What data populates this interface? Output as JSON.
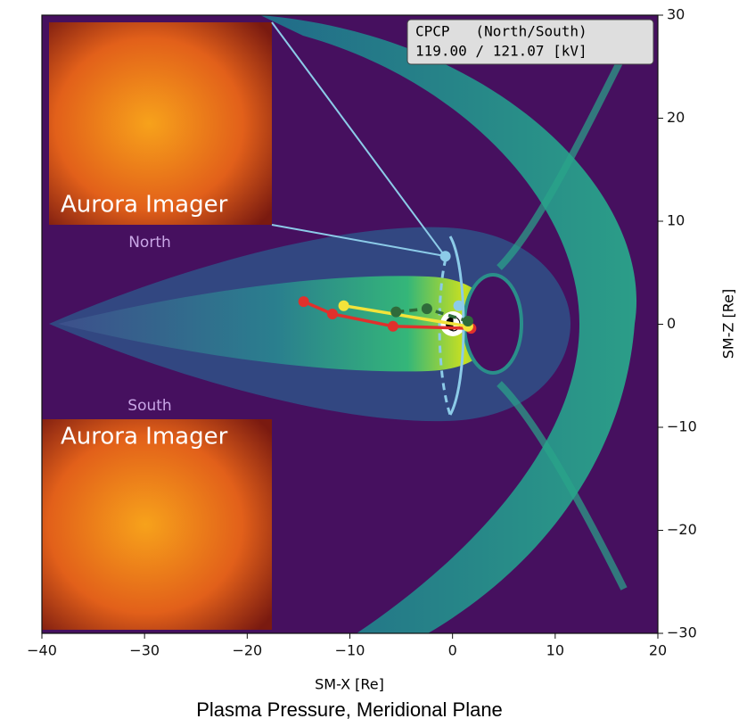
{
  "chart_data": {
    "type": "scatter",
    "title": "Plasma Pressure, Meridional Plane",
    "x_label": "SM-X [Re]",
    "y_label": "SM-Z [Re]",
    "xlim": [
      -40,
      20
    ],
    "ylim": [
      -30,
      30
    ],
    "xticks": [
      {
        "value": -40,
        "label": "−40"
      },
      {
        "value": -30,
        "label": "−30"
      },
      {
        "value": -20,
        "label": "−20"
      },
      {
        "value": -10,
        "label": "−10"
      },
      0,
      10,
      20
    ],
    "yticks": [
      {
        "value": -30,
        "label": "−30"
      },
      {
        "value": -20,
        "label": "−20"
      },
      {
        "value": -10,
        "label": "−10"
      },
      0,
      10,
      20,
      30
    ],
    "annotation": [
      "CPCP   (North/South)",
      "119.00 / 121.07 [kV]"
    ],
    "insets": [
      {
        "title": "North",
        "label": "Aurora Imager"
      },
      {
        "title": "South",
        "label": "Aurora Imager"
      }
    ],
    "series": [
      {
        "color": "#e0302c",
        "linestyle": "solid",
        "x": [
          -14.5,
          -11.7,
          -5.8,
          1.8
        ],
        "values": [
          2.2,
          1.0,
          -0.2,
          -0.4
        ]
      },
      {
        "color": "#f2e33a",
        "linestyle": "solid",
        "x": [
          -10.6,
          1.5
        ],
        "values": [
          1.8,
          -0.2
        ]
      },
      {
        "color": "#2f6b3a",
        "linestyle": "dashed",
        "x": [
          -5.5,
          -2.5,
          1.5
        ],
        "values": [
          1.2,
          1.5,
          0.3
        ]
      },
      {
        "color": "#8ccbe8",
        "linestyle": "none",
        "x": [
          -0.7,
          0.6
        ],
        "values": [
          6.6,
          1.8
        ]
      }
    ]
  }
}
